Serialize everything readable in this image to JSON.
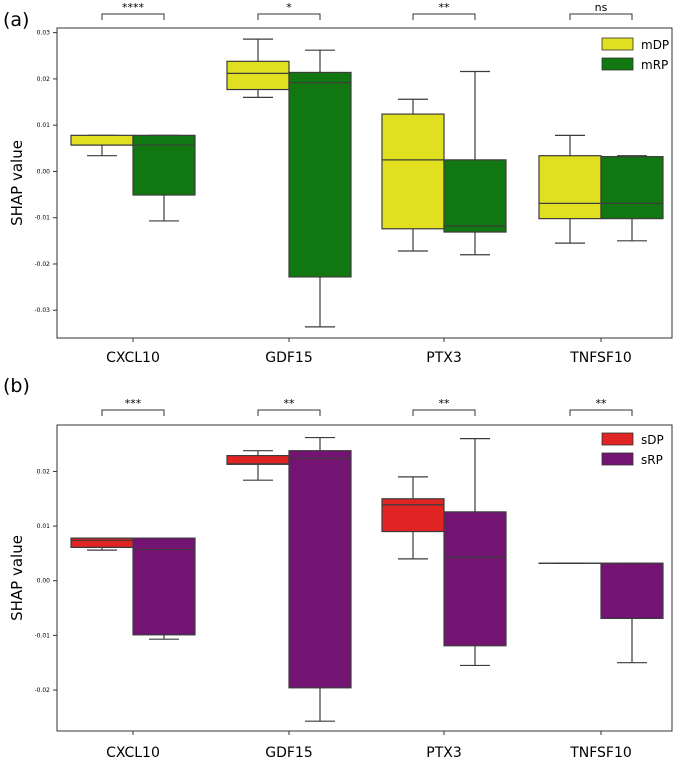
{
  "chart_data": [
    {
      "type": "box",
      "panel_label": "(a)",
      "ylabel": "SHAP value",
      "ylim": [
        -0.036,
        0.031
      ],
      "yticks": [
        0.03,
        0.02,
        0.01,
        0.0,
        -0.01,
        -0.02,
        -0.03
      ],
      "ytick_labels": [
        "0.03",
        "0.02",
        "0.01",
        "0.00",
        "-0.01",
        "-0.02",
        "-0.03"
      ],
      "categories": [
        "CXCL10",
        "GDF15",
        "PTX3",
        "TNFSF10"
      ],
      "significance": [
        "****",
        "*",
        "**",
        "ns"
      ],
      "legend_position": "top-right",
      "series": [
        {
          "name": "mDP",
          "color": "#e0e020",
          "boxes": [
            {
              "whisker_low": 0.0034,
              "q1": 0.0057,
              "median": 0.0057,
              "q3": 0.0078,
              "whisker_high": 0.0078
            },
            {
              "whisker_low": 0.016,
              "q1": 0.0177,
              "median": 0.0212,
              "q3": 0.0238,
              "whisker_high": 0.0286
            },
            {
              "whisker_low": -0.0172,
              "q1": -0.0124,
              "median": 0.0025,
              "q3": 0.0124,
              "whisker_high": 0.0156
            },
            {
              "whisker_low": -0.0155,
              "q1": -0.0102,
              "median": -0.0069,
              "q3": 0.0034,
              "whisker_high": 0.0078
            }
          ]
        },
        {
          "name": "mRP",
          "color": "#117811",
          "boxes": [
            {
              "whisker_low": -0.0107,
              "q1": -0.0051,
              "median": 0.0057,
              "q3": 0.0078,
              "whisker_high": 0.0078
            },
            {
              "whisker_low": -0.0336,
              "q1": -0.0228,
              "median": 0.0192,
              "q3": 0.0214,
              "whisker_high": 0.0262
            },
            {
              "whisker_low": -0.018,
              "q1": -0.0131,
              "median": -0.0118,
              "q3": 0.0025,
              "whisker_high": 0.0216
            },
            {
              "whisker_low": -0.015,
              "q1": -0.0102,
              "median": -0.0069,
              "q3": 0.0032,
              "whisker_high": 0.0034
            }
          ]
        }
      ]
    },
    {
      "type": "box",
      "panel_label": "(b)",
      "ylabel": "SHAP value",
      "ylim": [
        -0.0275,
        0.0285
      ],
      "yticks": [
        0.02,
        0.01,
        0.0,
        -0.01,
        -0.02
      ],
      "ytick_labels": [
        "0.02",
        "0.01",
        "0.00",
        "-0.01",
        "-0.02"
      ],
      "categories": [
        "CXCL10",
        "GDF15",
        "PTX3",
        "TNFSF10"
      ],
      "significance": [
        "***",
        "**",
        "**",
        "**"
      ],
      "legend_position": "top-right",
      "series": [
        {
          "name": "sDP",
          "color": "#e02424",
          "boxes": [
            {
              "whisker_low": 0.0056,
              "q1": 0.0061,
              "median": 0.0074,
              "q3": 0.0078,
              "whisker_high": 0.0078
            },
            {
              "whisker_low": 0.0184,
              "q1": 0.0213,
              "median": 0.0214,
              "q3": 0.0229,
              "whisker_high": 0.0238
            },
            {
              "whisker_low": 0.004,
              "q1": 0.009,
              "median": 0.0139,
              "q3": 0.015,
              "whisker_high": 0.019
            },
            {
              "whisker_low": 0.0032,
              "q1": 0.0032,
              "median": 0.0032,
              "q3": 0.0032,
              "whisker_high": 0.0032
            }
          ]
        },
        {
          "name": "sRP",
          "color": "#731473",
          "boxes": [
            {
              "whisker_low": -0.0107,
              "q1": -0.0099,
              "median": 0.0057,
              "q3": 0.0078,
              "whisker_high": 0.0078
            },
            {
              "whisker_low": -0.0257,
              "q1": -0.0196,
              "median": 0.0224,
              "q3": 0.0238,
              "whisker_high": 0.0262
            },
            {
              "whisker_low": -0.0155,
              "q1": -0.0119,
              "median": 0.0043,
              "q3": 0.0126,
              "whisker_high": 0.026
            },
            {
              "whisker_low": -0.015,
              "q1": -0.0069,
              "median": 0.0032,
              "q3": 0.0032,
              "whisker_high": 0.0032
            }
          ]
        }
      ]
    }
  ]
}
